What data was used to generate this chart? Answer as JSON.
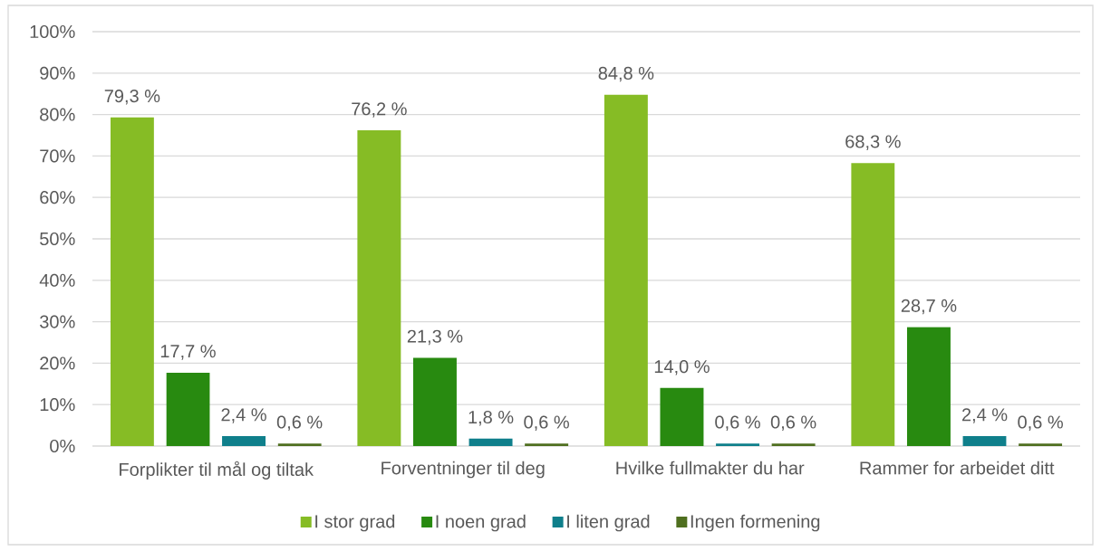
{
  "chart_data": {
    "type": "bar",
    "categories": [
      "Forplikter til mål og tiltak",
      "Forventninger til deg",
      "Hvilke fullmakter du har",
      "Rammer for arbeidet ditt"
    ],
    "series": [
      {
        "name": "I stor grad",
        "color": "#86bc25",
        "values": [
          79.3,
          76.2,
          84.8,
          68.3
        ],
        "value_labels": [
          "79,3 %",
          "76,2 %",
          "84,8 %",
          "68,3 %"
        ]
      },
      {
        "name": "I noen grad",
        "color": "#288a10",
        "values": [
          17.7,
          21.3,
          14.0,
          28.7
        ],
        "value_labels": [
          "17,7 %",
          "21,3 %",
          "14,0 %",
          "28,7 %"
        ]
      },
      {
        "name": "I liten grad",
        "color": "#0f7f8b",
        "values": [
          2.4,
          1.8,
          0.6,
          2.4
        ],
        "value_labels": [
          "2,4 %",
          "1,8 %",
          "0,6 %",
          "2,4 %"
        ]
      },
      {
        "name": "Ingen formening",
        "color": "#4f6f1f",
        "values": [
          0.6,
          0.6,
          0.6,
          0.6
        ],
        "value_labels": [
          "0,6 %",
          "0,6 %",
          "0,6 %",
          "0,6 %"
        ]
      }
    ],
    "ylim": [
      0,
      100
    ],
    "yticks": [
      {
        "value": 0,
        "label": "0%"
      },
      {
        "value": 10,
        "label": "10%"
      },
      {
        "value": 20,
        "label": "20%"
      },
      {
        "value": 30,
        "label": "30%"
      },
      {
        "value": 40,
        "label": "40%"
      },
      {
        "value": 50,
        "label": "50%"
      },
      {
        "value": 60,
        "label": "60%"
      },
      {
        "value": 70,
        "label": "70%"
      },
      {
        "value": 80,
        "label": "80%"
      },
      {
        "value": 90,
        "label": "90%"
      },
      {
        "value": 100,
        "label": "100%"
      }
    ],
    "grid": "y",
    "legend": "bottom"
  }
}
